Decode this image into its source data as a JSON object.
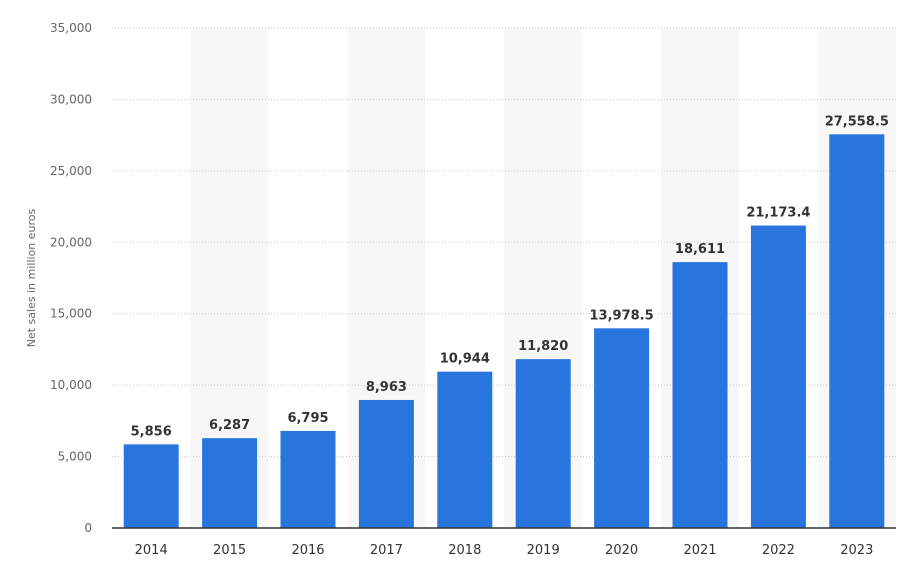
{
  "chart_data": {
    "type": "bar",
    "categories": [
      "2014",
      "2015",
      "2016",
      "2017",
      "2018",
      "2019",
      "2020",
      "2021",
      "2022",
      "2023"
    ],
    "values": [
      5856,
      6287,
      6795,
      8963,
      10944,
      11820,
      13978.5,
      18611,
      21173.4,
      27558.5
    ],
    "value_labels": [
      "5,856",
      "6,287",
      "6,795",
      "8,963",
      "10,944",
      "11,820",
      "13,978.5",
      "18,611",
      "21,173.4",
      "27,558.5"
    ],
    "ylabel": "Net sales in million euros",
    "xlabel": "",
    "ylim": [
      0,
      35000
    ],
    "yticks": [
      0,
      5000,
      10000,
      15000,
      20000,
      25000,
      30000,
      35000
    ],
    "ytick_labels": [
      "0",
      "5,000",
      "10,000",
      "15,000",
      "20,000",
      "25,000",
      "30,000",
      "35,000"
    ],
    "grid": true,
    "bar_color": "#2876dd",
    "band_color": "#f7f7f7",
    "gridline_color": "#c8c8c8"
  }
}
